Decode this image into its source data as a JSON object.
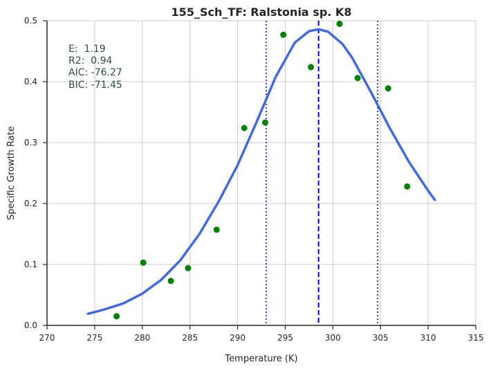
{
  "chart_data": {
    "type": "scatter",
    "title": "155_Sch_TF: Ralstonia sp. K8",
    "xlabel": "Temperature (K)",
    "ylabel": "Specific Growth Rate",
    "xlim": [
      270,
      315
    ],
    "ylim": [
      0,
      0.5
    ],
    "xticks": [
      270,
      275,
      280,
      285,
      290,
      295,
      300,
      305,
      310,
      315
    ],
    "yticks": [
      0.0,
      0.1,
      0.2,
      0.3,
      0.4,
      0.5
    ],
    "xtick_labels": [
      "270",
      "275",
      "280",
      "285",
      "290",
      "295",
      "300",
      "305",
      "310",
      "315"
    ],
    "ytick_labels": [
      "0.0",
      "0.1",
      "0.2",
      "0.3",
      "0.4",
      "0.5"
    ],
    "grid": true,
    "annotations": [
      "E:  1.19",
      "R2:  0.94",
      "AIC: -76.27",
      "BIC: -71.45"
    ],
    "points": {
      "color": "#008000",
      "x": [
        277.3,
        280.1,
        283.0,
        284.8,
        287.8,
        290.7,
        292.9,
        294.8,
        297.7,
        300.7,
        302.6,
        305.8,
        307.8
      ],
      "y": [
        0.015,
        0.103,
        0.073,
        0.094,
        0.157,
        0.324,
        0.333,
        0.477,
        0.424,
        0.495,
        0.406,
        0.389,
        0.228
      ]
    },
    "fit_curve": {
      "color": "#4169e1",
      "x": [
        274.3,
        276,
        278,
        280,
        282,
        284,
        286,
        288,
        290,
        292,
        294,
        296,
        297.5,
        298.5,
        299.5,
        301,
        302,
        304,
        306,
        308,
        310,
        310.7
      ],
      "y": [
        0.019,
        0.026,
        0.036,
        0.052,
        0.075,
        0.107,
        0.15,
        0.203,
        0.263,
        0.334,
        0.408,
        0.464,
        0.483,
        0.486,
        0.482,
        0.462,
        0.44,
        0.383,
        0.323,
        0.268,
        0.221,
        0.206
      ]
    },
    "vlines": [
      {
        "x": 298.5,
        "style": "dashed",
        "color": "#0000cc"
      },
      {
        "x": 293.0,
        "style": "dotted",
        "color": "#0000cc"
      },
      {
        "x": 304.7,
        "style": "dotted",
        "color": "#0000cc"
      }
    ]
  }
}
